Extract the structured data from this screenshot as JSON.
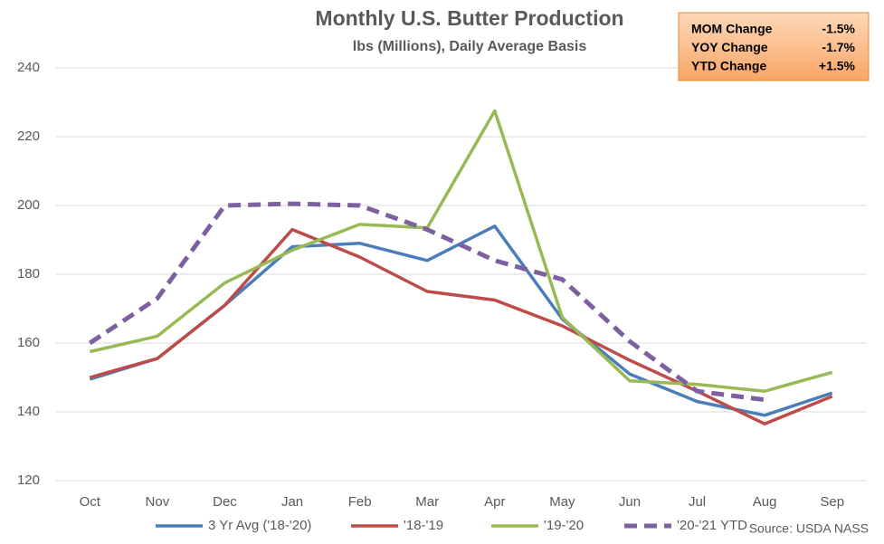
{
  "chart_data": {
    "type": "line",
    "title": "Monthly U.S. Butter Production",
    "subtitle": "lbs (Millions), Daily Average Basis",
    "categories": [
      "Oct",
      "Nov",
      "Dec",
      "Jan",
      "Feb",
      "Mar",
      "Apr",
      "May",
      "Jun",
      "Jul",
      "Aug",
      "Sep"
    ],
    "series": [
      {
        "name": "3 Yr Avg ('18-'20)",
        "color": "#4a7ebb",
        "dashed": false,
        "values": [
          149.5,
          155.5,
          171,
          188,
          189,
          184,
          194,
          167,
          151,
          143,
          139,
          145.5
        ]
      },
      {
        "name": "'18-'19",
        "color": "#be4b48",
        "dashed": false,
        "values": [
          150,
          155.5,
          171,
          193,
          185,
          175,
          172.5,
          165,
          155,
          146,
          136.5,
          144.5
        ]
      },
      {
        "name": "'19-'20",
        "color": "#98b954",
        "dashed": false,
        "values": [
          157.5,
          162,
          177.5,
          187,
          194.5,
          193.5,
          227.5,
          167.5,
          149,
          148,
          146,
          151.5
        ]
      },
      {
        "name": "'20-'21 YTD",
        "color": "#7d60a0",
        "dashed": true,
        "values": [
          160,
          173,
          200,
          200.5,
          200,
          193,
          184,
          178.5,
          160.5,
          146,
          143.5,
          null
        ]
      }
    ],
    "ylim": [
      120,
      240
    ],
    "yticks": [
      120,
      140,
      160,
      180,
      200,
      220,
      240
    ],
    "grid": true,
    "legend": "bottom",
    "source": "Source: USDA NASS",
    "summary_box": [
      {
        "label": "MOM Change",
        "value": "-1.5%"
      },
      {
        "label": "YOY Change",
        "value": "-1.7%"
      },
      {
        "label": "YTD Change",
        "value": "+1.5%"
      }
    ]
  }
}
